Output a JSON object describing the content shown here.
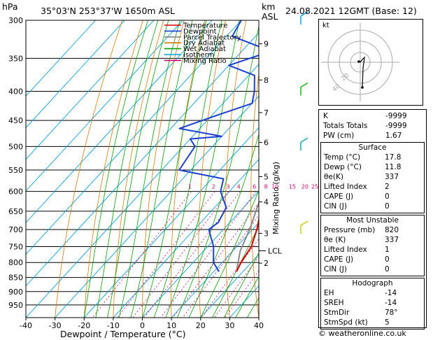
{
  "header": {
    "location": "35°03'N  253°37'W  1650m  ASL",
    "datetime": "24.08.2021  12GMT  (Base: 12)",
    "hpa_label": "hPa",
    "km_label": "km",
    "asl_label": "ASL"
  },
  "legend": [
    "Temperature",
    "Dewpoint",
    "Parcel Trajectory",
    "Dry Adiabat",
    "Wet Adiabat",
    "Isotherm",
    "Mixing Ratio"
  ],
  "legend_colors": [
    "#e00000",
    "#1a3fd6",
    "#888888",
    "#d77a00",
    "#00a000",
    "#00a0e0",
    "#d4006a"
  ],
  "chart_data": {
    "type": "skew-t",
    "xlabel": "Dewpoint / Temperature (°C)",
    "ylabel_right": "Mixing Ratio (g/kg)",
    "pressure_ticks": [
      300,
      350,
      400,
      450,
      500,
      550,
      600,
      650,
      700,
      750,
      800,
      850,
      900,
      950
    ],
    "temperature_ticks": [
      -40,
      -30,
      -20,
      -10,
      0,
      10,
      20,
      30,
      40
    ],
    "xlim": [
      -40,
      40
    ],
    "plim": [
      1000,
      300
    ],
    "km_ticks": [
      {
        "label": "9",
        "p": 330
      },
      {
        "label": "8",
        "p": 382
      },
      {
        "label": "7",
        "p": 436
      },
      {
        "label": "6",
        "p": 492
      },
      {
        "label": "5",
        "p": 565
      },
      {
        "label": "4",
        "p": 626
      },
      {
        "label": "3",
        "p": 711
      },
      {
        "label": "2",
        "p": 802
      }
    ],
    "lcl": {
      "label": "LCL",
      "p": 763
    },
    "mixing_ratio_labels": [
      "1",
      "2",
      "3",
      "4",
      "6",
      "8",
      "10",
      "15",
      "20",
      "25"
    ],
    "mixing_ratio_values": [
      1,
      2,
      3,
      4,
      6,
      8,
      10,
      15,
      20,
      25
    ],
    "temperature": [
      {
        "p": 300,
        "t": -33
      },
      {
        "p": 350,
        "t": -25
      },
      {
        "p": 400,
        "t": -18
      },
      {
        "p": 450,
        "t": -12
      },
      {
        "p": 500,
        "t": -7
      },
      {
        "p": 550,
        "t": -2
      },
      {
        "p": 600,
        "t": 2.5
      },
      {
        "p": 650,
        "t": 7
      },
      {
        "p": 700,
        "t": 11.5
      },
      {
        "p": 750,
        "t": 15
      },
      {
        "p": 800,
        "t": 16.5
      },
      {
        "p": 830,
        "t": 17.8
      }
    ],
    "dewpoint": [
      {
        "p": 300,
        "t": -60
      },
      {
        "p": 320,
        "t": -58
      },
      {
        "p": 340,
        "t": -40
      },
      {
        "p": 360,
        "t": -50
      },
      {
        "p": 375,
        "t": -38
      },
      {
        "p": 400,
        "t": -33
      },
      {
        "p": 420,
        "t": -30
      },
      {
        "p": 440,
        "t": -38
      },
      {
        "p": 465,
        "t": -47
      },
      {
        "p": 480,
        "t": -30
      },
      {
        "p": 485,
        "t": -40
      },
      {
        "p": 500,
        "t": -36
      },
      {
        "p": 550,
        "t": -34
      },
      {
        "p": 570,
        "t": -16
      },
      {
        "p": 600,
        "t": -13
      },
      {
        "p": 640,
        "t": -6
      },
      {
        "p": 680,
        "t": -4
      },
      {
        "p": 700,
        "t": -5
      },
      {
        "p": 750,
        "t": 2
      },
      {
        "p": 800,
        "t": 7
      },
      {
        "p": 830,
        "t": 11.8
      }
    ],
    "parcel": [
      {
        "p": 830,
        "t": 17.8
      },
      {
        "p": 763,
        "t": 12.5
      },
      {
        "p": 700,
        "t": 9
      },
      {
        "p": 600,
        "t": 1.5
      },
      {
        "p": 500,
        "t": -8.5
      },
      {
        "p": 400,
        "t": -22
      },
      {
        "p": 300,
        "t": -42
      }
    ],
    "wind_barbs": [
      {
        "p": 300,
        "color": "#00a0e0"
      },
      {
        "p": 400,
        "color": "#00b000"
      },
      {
        "p": 500,
        "color": "#00a0a0"
      },
      {
        "p": 700,
        "color": "#c8c800"
      }
    ]
  },
  "hodograph": {
    "label": "kt",
    "ring_labels": [
      "40",
      "20"
    ]
  },
  "indices": {
    "rows": [
      {
        "label": "K",
        "value": "-9999"
      },
      {
        "label": "Totals Totals",
        "value": "-9999"
      },
      {
        "label": "PW (cm)",
        "value": "1.67"
      }
    ]
  },
  "surface": {
    "title": "Surface",
    "rows": [
      {
        "label": "Temp (°C)",
        "value": "17.8"
      },
      {
        "label": "Dewp (°C)",
        "value": "11.8"
      },
      {
        "label": "θe(K)",
        "value": "337"
      },
      {
        "label": "Lifted Index",
        "value": "2"
      },
      {
        "label": "CAPE (J)",
        "value": "0"
      },
      {
        "label": "CIN (J)",
        "value": "0"
      }
    ]
  },
  "unstable": {
    "title": "Most Unstable",
    "rows": [
      {
        "label": "Pressure (mb)",
        "value": "820"
      },
      {
        "label": "θe (K)",
        "value": "337"
      },
      {
        "label": "Lifted Index",
        "value": "1"
      },
      {
        "label": "CAPE (J)",
        "value": "0"
      },
      {
        "label": "CIN (J)",
        "value": "0"
      }
    ]
  },
  "hodo_table": {
    "title": "Hodograph",
    "rows": [
      {
        "label": "EH",
        "value": "-14"
      },
      {
        "label": "SREH",
        "value": "-14"
      },
      {
        "label": "StmDir",
        "value": "78°"
      },
      {
        "label": "StmSpd (kt)",
        "value": "5"
      }
    ]
  },
  "credit": "© weatheronline.co.uk"
}
